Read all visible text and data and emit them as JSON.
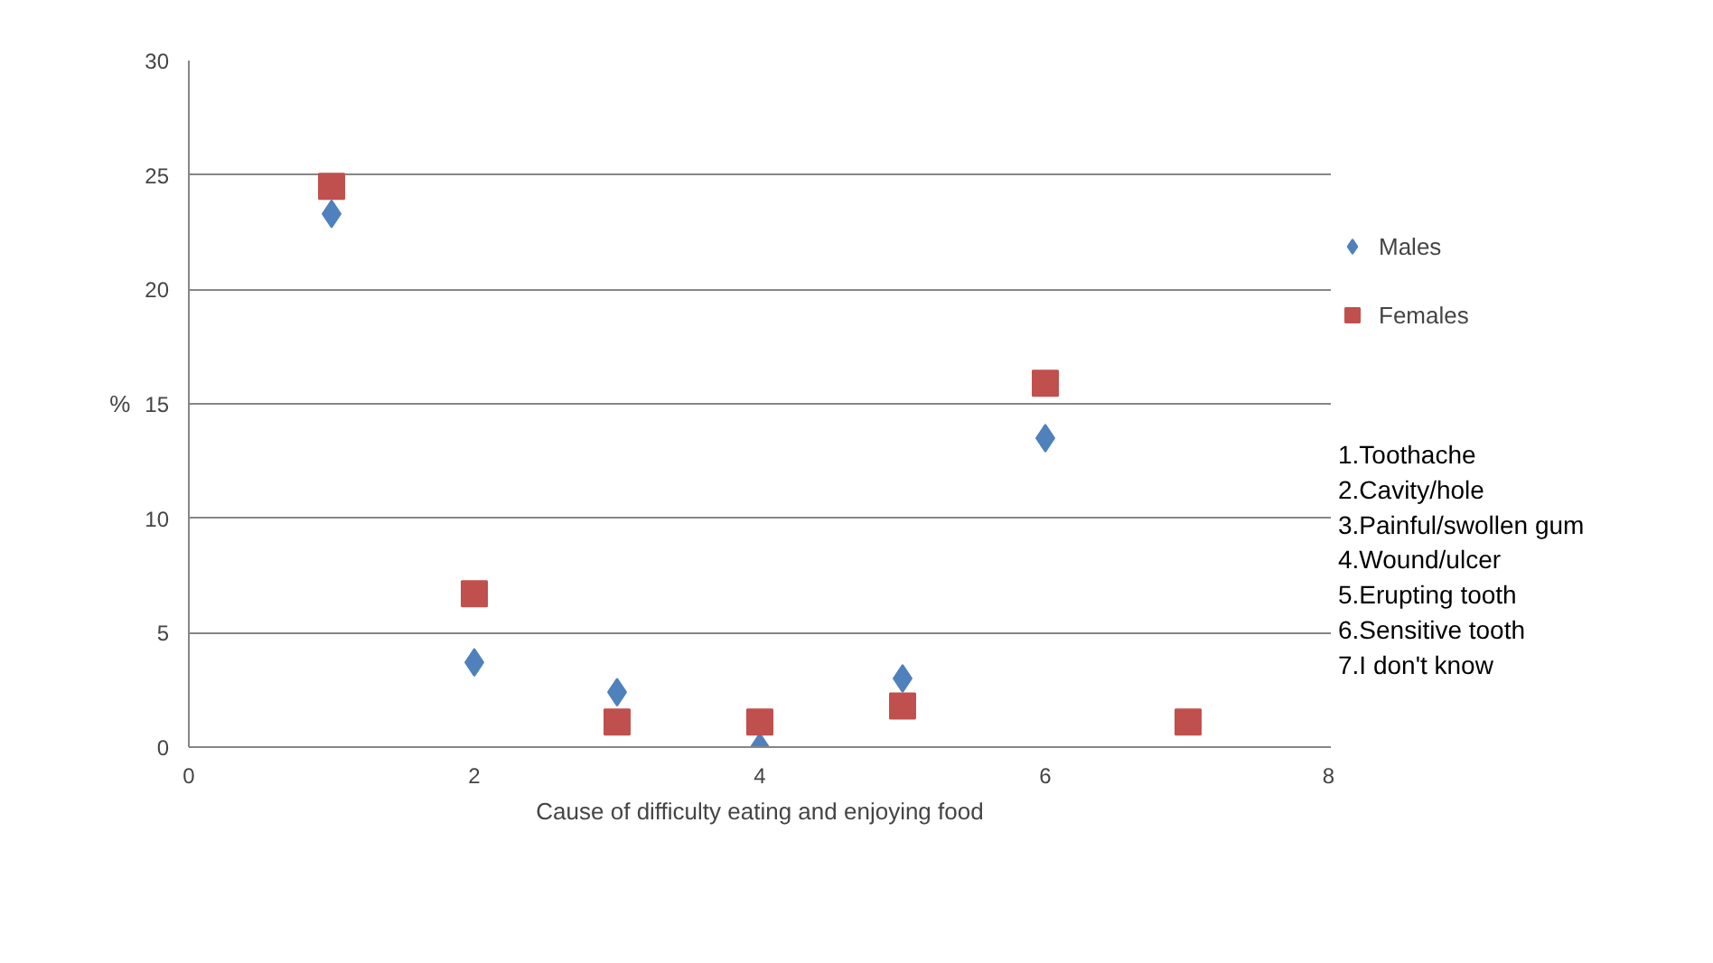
{
  "chart_data": {
    "type": "scatter",
    "xlabel": "Cause of difficulty eating and enjoying food",
    "ylabel": "%",
    "x": [
      1,
      2,
      3,
      4,
      5,
      6,
      7
    ],
    "series": [
      {
        "name": "Males",
        "color": "#4f81bd",
        "marker": "diamond",
        "values": [
          23.3,
          3.7,
          2.4,
          0,
          3.0,
          13.5,
          null
        ]
      },
      {
        "name": "Females",
        "color": "#c0504d",
        "marker": "square",
        "values": [
          24.5,
          6.7,
          1.1,
          1.1,
          1.8,
          15.9,
          1.1
        ]
      }
    ],
    "xlim": [
      0,
      8
    ],
    "xticks": [
      0,
      2,
      4,
      6,
      8
    ],
    "ylim": [
      0,
      30
    ],
    "yticks": [
      0,
      5,
      10,
      15,
      20,
      25,
      30
    ],
    "grid": "y",
    "legend": "right",
    "annotations": [
      "1.Toothache",
      "2.Cavity/hole",
      "3.Painful/swollen gum",
      "4.Wound/ulcer",
      "5.Erupting tooth",
      "6.Sensitive tooth",
      "7.I don't know"
    ]
  }
}
